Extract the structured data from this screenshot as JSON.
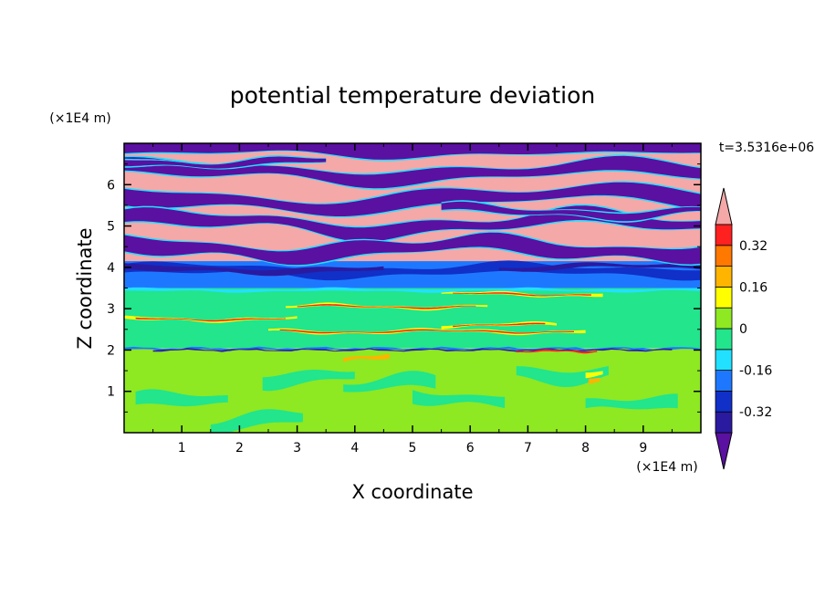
{
  "chart_data": {
    "type": "heatmap",
    "title": "potential temperature deviation",
    "xlabel": "X coordinate",
    "ylabel": "Z coordinate",
    "x_unit": "(×1E4 m)",
    "y_unit": "(×1E4 m)",
    "time_label": "t=3.5316e+06",
    "xlim": [
      0,
      10
    ],
    "ylim": [
      0,
      7
    ],
    "x_ticks": [
      "1",
      "2",
      "3",
      "4",
      "5",
      "6",
      "7",
      "8",
      "9"
    ],
    "y_ticks": [
      "1",
      "2",
      "3",
      "4",
      "5",
      "6"
    ],
    "colorbar": {
      "levels": [
        -0.4,
        -0.32,
        -0.24,
        -0.16,
        -0.08,
        0,
        0.08,
        0.16,
        0.24,
        0.32,
        0.4
      ],
      "colors": [
        "#5a10a0",
        "#2a1aa0",
        "#1030c8",
        "#1e78ff",
        "#22e0ff",
        "#22e58c",
        "#8ee822",
        "#ffff00",
        "#ffb400",
        "#ff7800",
        "#ff2020",
        "#f4a8a8"
      ],
      "tick_labels": [
        "0.32",
        "0.16",
        "0",
        "-0.16",
        "-0.32"
      ],
      "extend": "both"
    },
    "layers": [
      {
        "z_range": [
          0,
          2
        ],
        "dominant_value": "0 to 0.08",
        "description_colors": [
          "#8ee822",
          "#22e58c"
        ]
      },
      {
        "z_range": [
          2,
          3.5
        ],
        "dominant_value": "-0.08 to 0.08",
        "description_colors": [
          "#22e58c",
          "#22e0ff"
        ]
      },
      {
        "z_range": [
          3.5,
          4.2
        ],
        "dominant_value": "-0.32 to -0.16",
        "description_colors": [
          "#1e78ff",
          "#2a1aa0"
        ]
      },
      {
        "z_range": [
          4.2,
          7
        ],
        "dominant_value": "alternating >0.4 and <-0.4",
        "description_colors": [
          "#f4a8a8",
          "#5a10a0"
        ]
      }
    ]
  }
}
